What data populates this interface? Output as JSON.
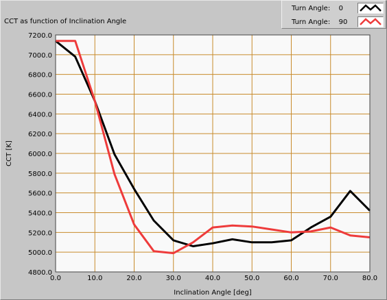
{
  "chart_data": {
    "type": "line",
    "title": "CCT as function of Inclination Angle",
    "xlabel": "Inclination Angle [deg]",
    "ylabel": "CCT [K]",
    "xlim": [
      0,
      80
    ],
    "ylim": [
      4800,
      7200
    ],
    "x_ticks": [
      "0.0",
      "10.0",
      "20.0",
      "30.0",
      "40.0",
      "50.0",
      "60.0",
      "70.0",
      "80.0"
    ],
    "y_ticks": [
      "4800.0",
      "5000.0",
      "5200.0",
      "5400.0",
      "5600.0",
      "5800.0",
      "6000.0",
      "6200.0",
      "6400.0",
      "6600.0",
      "6800.0",
      "7000.0",
      "7200.0"
    ],
    "grid": true,
    "legend_position": "top-right",
    "colors": {
      "plot_background": "#f9f9f9",
      "grid": "#c88a2a",
      "series_0": "#000000",
      "series_1": "#ee3b3b"
    },
    "series": [
      {
        "legend_label": "Turn Angle:",
        "legend_value": "0",
        "color": "#000000",
        "x": [
          0,
          5,
          10,
          15,
          20,
          25,
          30,
          35,
          40,
          45,
          50,
          55,
          60,
          65,
          70,
          75,
          80
        ],
        "y": [
          7140,
          6980,
          6530,
          5990,
          5640,
          5320,
          5120,
          5060,
          5090,
          5130,
          5100,
          5100,
          5120,
          5250,
          5360,
          5620,
          5420
        ]
      },
      {
        "legend_label": "Turn Angle:",
        "legend_value": "90",
        "color": "#ee3b3b",
        "x": [
          0,
          5,
          10,
          15,
          20,
          25,
          30,
          35,
          40,
          45,
          50,
          55,
          60,
          65,
          70,
          75,
          80
        ],
        "y": [
          7140,
          7140,
          6530,
          5790,
          5280,
          5010,
          4990,
          5100,
          5250,
          5270,
          5260,
          5230,
          5200,
          5210,
          5250,
          5170,
          5150
        ]
      }
    ]
  }
}
